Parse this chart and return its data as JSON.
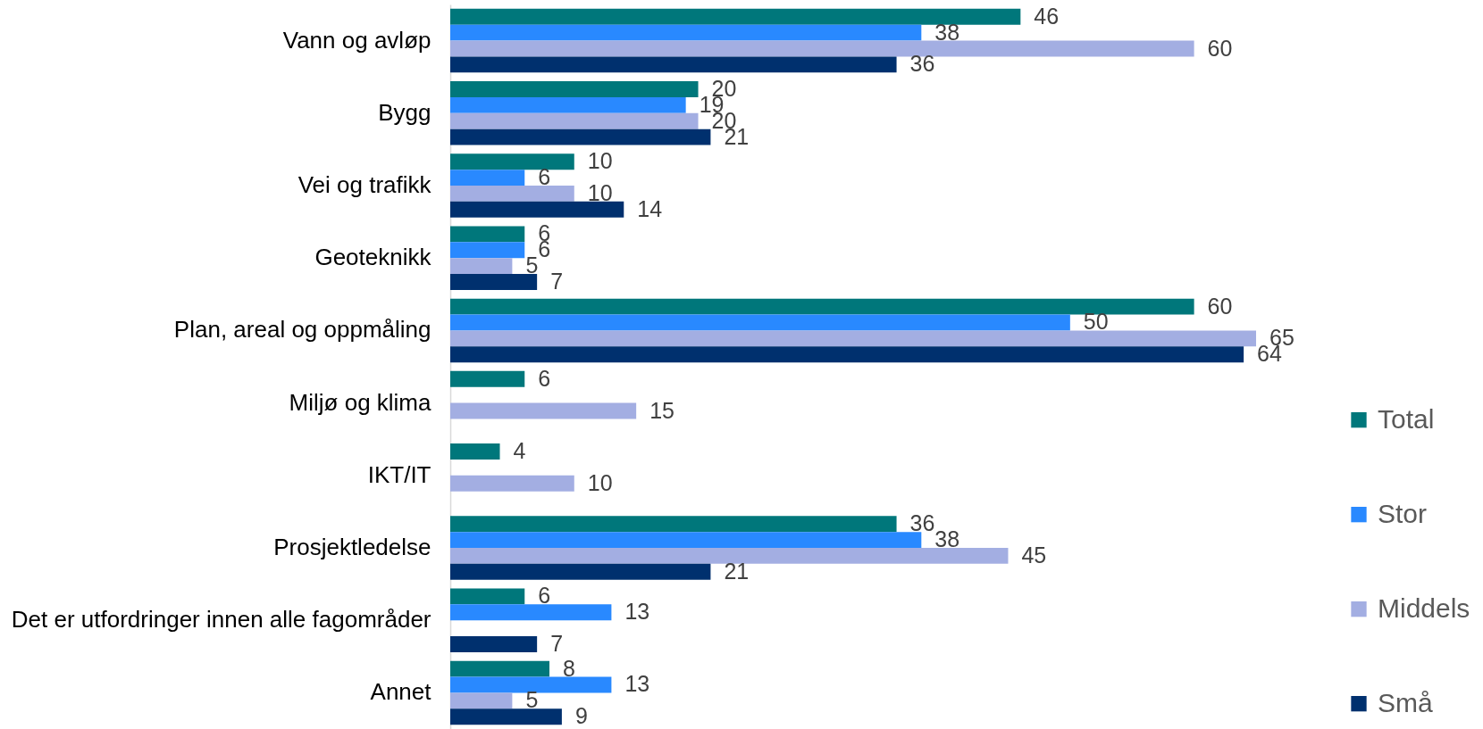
{
  "chart_data": {
    "type": "bar",
    "orientation": "horizontal",
    "categories": [
      "Vann og avløp",
      "Bygg",
      "Vei og trafikk",
      "Geoteknikk",
      "Plan, areal og oppmåling",
      "Miljø og klima",
      "IKT/IT",
      "Prosjektledelse",
      "Det er utfordringer innen alle fagområder",
      "Annet"
    ],
    "series": [
      {
        "name": "Total",
        "color": "#00777b",
        "values": [
          46,
          20,
          10,
          6,
          60,
          6,
          4,
          36,
          6,
          8
        ]
      },
      {
        "name": "Stor",
        "color": "#2989ff",
        "values": [
          38,
          19,
          6,
          6,
          50,
          null,
          null,
          38,
          13,
          13
        ]
      },
      {
        "name": "Middels",
        "color": "#a3aee2",
        "values": [
          60,
          20,
          10,
          5,
          65,
          15,
          10,
          45,
          null,
          5
        ]
      },
      {
        "name": "Små",
        "color": "#00306e",
        "values": [
          36,
          21,
          14,
          7,
          64,
          null,
          null,
          21,
          7,
          9
        ]
      }
    ],
    "data_labels": true,
    "legend": "right",
    "tick_labels": "y"
  }
}
